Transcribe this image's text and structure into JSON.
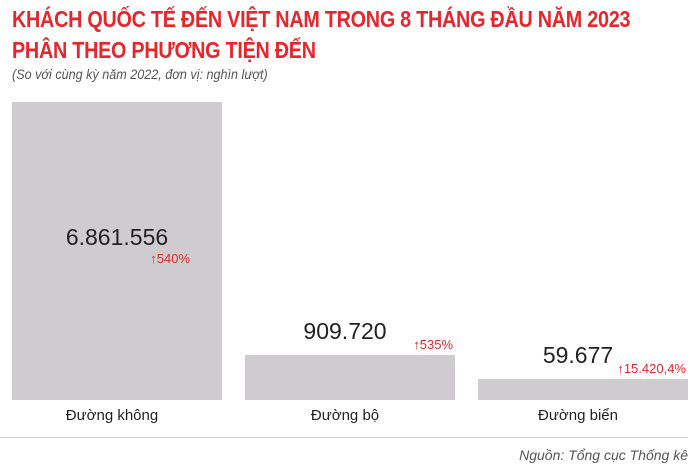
{
  "title_line1": "KHÁCH QUỐC TẾ ĐẾN VIỆT NAM TRONG 8 THÁNG ĐẦU NĂM 2023",
  "title_line2": "PHÂN THEO PHƯƠNG TIỆN ĐẾN",
  "subtitle": "(So với cùng kỳ năm 2022, đơn vị: nghìn lượt)",
  "source": "Nguồn: Tổng cục Thống kê",
  "chart_data": {
    "type": "bar",
    "title": "KHÁCH QUỐC TẾ ĐẾN VIỆT NAM TRONG 8 THÁNG ĐẦU NĂM 2023 PHÂN THEO PHƯƠNG TIỆN ĐẾN",
    "categories": [
      "Đường không",
      "Đường bộ",
      "Đường biển"
    ],
    "values": [
      6861.556,
      909.72,
      59.677
    ],
    "value_labels": [
      "6.861.556",
      "909.720",
      "59.677"
    ],
    "change_labels": [
      "540%",
      "535%",
      "15.420,4%"
    ],
    "change_icon": "arrow-up-icon",
    "bar_color": "#cfcccf",
    "accent_color": "#e8252a",
    "grid": false
  }
}
